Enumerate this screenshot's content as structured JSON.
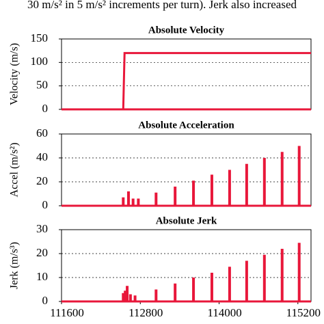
{
  "caption": "30 m/s² in 5 m/s² increments per turn). Jerk also increased",
  "chart_data": [
    {
      "type": "line",
      "title": "Absolute Velocity",
      "ylabel": "Velocity (m/s)",
      "color": "#e8173a",
      "x": [
        111600,
        112540,
        112560,
        115400
      ],
      "values": [
        0,
        0,
        120,
        120
      ],
      "xlim": [
        111600,
        115400
      ],
      "ylim": [
        0,
        150
      ],
      "yticks": [
        0,
        50,
        100,
        150
      ],
      "grid": true
    },
    {
      "type": "bar",
      "title": "Absolute Acceleration",
      "ylabel": "Accel (m/s²)",
      "color": "#e8173a",
      "x": [
        112540,
        112620,
        112690,
        112770,
        113040,
        113330,
        113610,
        113890,
        114160,
        114420,
        114690,
        114960,
        115220
      ],
      "values": [
        7,
        12,
        6,
        6,
        11,
        16,
        21,
        26,
        30,
        35,
        40,
        45,
        50
      ],
      "xlim": [
        111600,
        115400
      ],
      "ylim": [
        0,
        60
      ],
      "yticks": [
        0,
        20,
        40,
        60
      ],
      "grid": true
    },
    {
      "type": "bar",
      "title": "Absolute Jerk",
      "ylabel": "Jerk (m/s³)",
      "color": "#e8173a",
      "x": [
        112540,
        112570,
        112600,
        112650,
        112720,
        113040,
        113330,
        113610,
        113890,
        114160,
        114420,
        114690,
        114960,
        115220
      ],
      "values": [
        3.5,
        4.5,
        6.5,
        3,
        2.5,
        5,
        7.5,
        10,
        12,
        14.5,
        17,
        19.5,
        22,
        24.5
      ],
      "xlim": [
        111600,
        115400
      ],
      "ylim": [
        0,
        30
      ],
      "yticks": [
        0,
        10,
        20,
        30
      ],
      "grid": true,
      "xticks": [
        111600,
        112800,
        114000,
        115200
      ]
    }
  ]
}
